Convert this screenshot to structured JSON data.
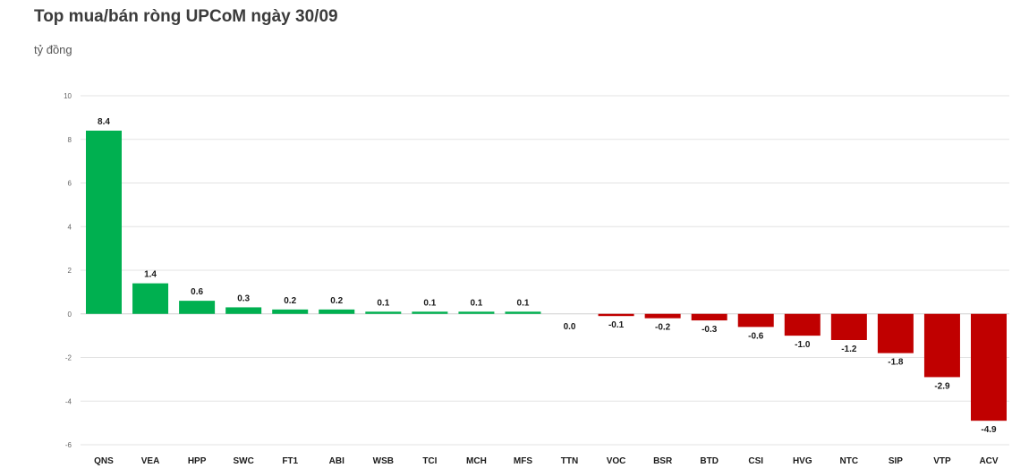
{
  "chart_data": {
    "type": "bar",
    "title": "Top mua/bán ròng UPCoM ngày 30/09",
    "ylabel": "tỷ đồng",
    "xlabel": "",
    "ylim": [
      -6,
      10
    ],
    "yticks": [
      -6,
      -4,
      -2,
      0,
      2,
      4,
      6,
      8,
      10
    ],
    "grid": true,
    "categories": [
      "QNS",
      "VEA",
      "HPP",
      "SWC",
      "FT1",
      "ABI",
      "WSB",
      "TCI",
      "MCH",
      "MFS",
      "TTN",
      "VOC",
      "BSR",
      "BTD",
      "CSI",
      "HVG",
      "NTC",
      "SIP",
      "VTP",
      "ACV"
    ],
    "values": [
      8.4,
      1.4,
      0.6,
      0.3,
      0.2,
      0.2,
      0.1,
      0.1,
      0.1,
      0.1,
      0.0,
      -0.1,
      -0.2,
      -0.3,
      -0.6,
      -1.0,
      -1.2,
      -1.8,
      -2.9,
      -4.9
    ],
    "labels": [
      "8.4",
      "1.4",
      "0.6",
      "0.3",
      "0.2",
      "0.2",
      "0.1",
      "0.1",
      "0.1",
      "0.1",
      "0.0",
      "-0.1",
      "-0.2",
      "-0.3",
      "-0.6",
      "-1.0",
      "-1.2",
      "-1.8",
      "-2.9",
      "-4.9"
    ],
    "colors": {
      "positive": "#00b050",
      "negative": "#c00000"
    }
  }
}
